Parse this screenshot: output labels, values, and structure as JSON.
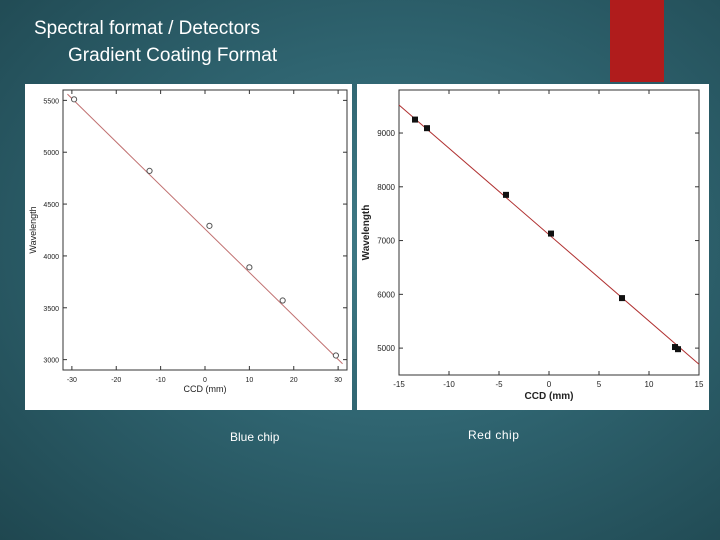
{
  "slide": {
    "title_line1": "Spectral format / Detectors",
    "title_line2": "Gradient Coating Format",
    "accent_color": "#b01c1c"
  },
  "captions": {
    "blue": "Blue chip",
    "red": "Red chip"
  },
  "chart_data": [
    {
      "type": "scatter",
      "title": "",
      "xlabel": "CCD (mm)",
      "ylabel": "Wavelength",
      "xlim": [
        -32,
        32
      ],
      "ylim": [
        2900,
        5600
      ],
      "xticks": [
        -30,
        -20,
        -10,
        0,
        10,
        20,
        30
      ],
      "yticks": [
        3000,
        3500,
        4000,
        4500,
        5000,
        5500
      ],
      "grid": false,
      "marker": "open-circle",
      "fit_line": {
        "x": [
          -31,
          31
        ],
        "y": [
          5560,
          2960
        ]
      },
      "points": [
        {
          "x": -29.5,
          "y": 5510
        },
        {
          "x": -12.5,
          "y": 4820
        },
        {
          "x": 1,
          "y": 4290
        },
        {
          "x": 10,
          "y": 3890
        },
        {
          "x": 17.5,
          "y": 3570
        },
        {
          "x": 29.5,
          "y": 3040
        }
      ]
    },
    {
      "type": "scatter",
      "title": "",
      "xlabel": "CCD (mm)",
      "ylabel": "Wavelength",
      "xlim": [
        -15,
        15
      ],
      "ylim": [
        4500,
        9800
      ],
      "xticks": [
        -15,
        -10,
        -5,
        0,
        5,
        10,
        15
      ],
      "yticks": [
        5000,
        6000,
        7000,
        8000,
        9000
      ],
      "grid": false,
      "marker": "filled-square",
      "fit_line": {
        "x": [
          -15,
          15
        ],
        "y": [
          9520,
          4700
        ]
      },
      "points": [
        {
          "x": -13.4,
          "y": 9250
        },
        {
          "x": -12.2,
          "y": 9090
        },
        {
          "x": -4.3,
          "y": 7850
        },
        {
          "x": 0.2,
          "y": 7130
        },
        {
          "x": 7.3,
          "y": 5930
        },
        {
          "x": 12.6,
          "y": 5020
        },
        {
          "x": 12.9,
          "y": 4980
        }
      ]
    }
  ]
}
